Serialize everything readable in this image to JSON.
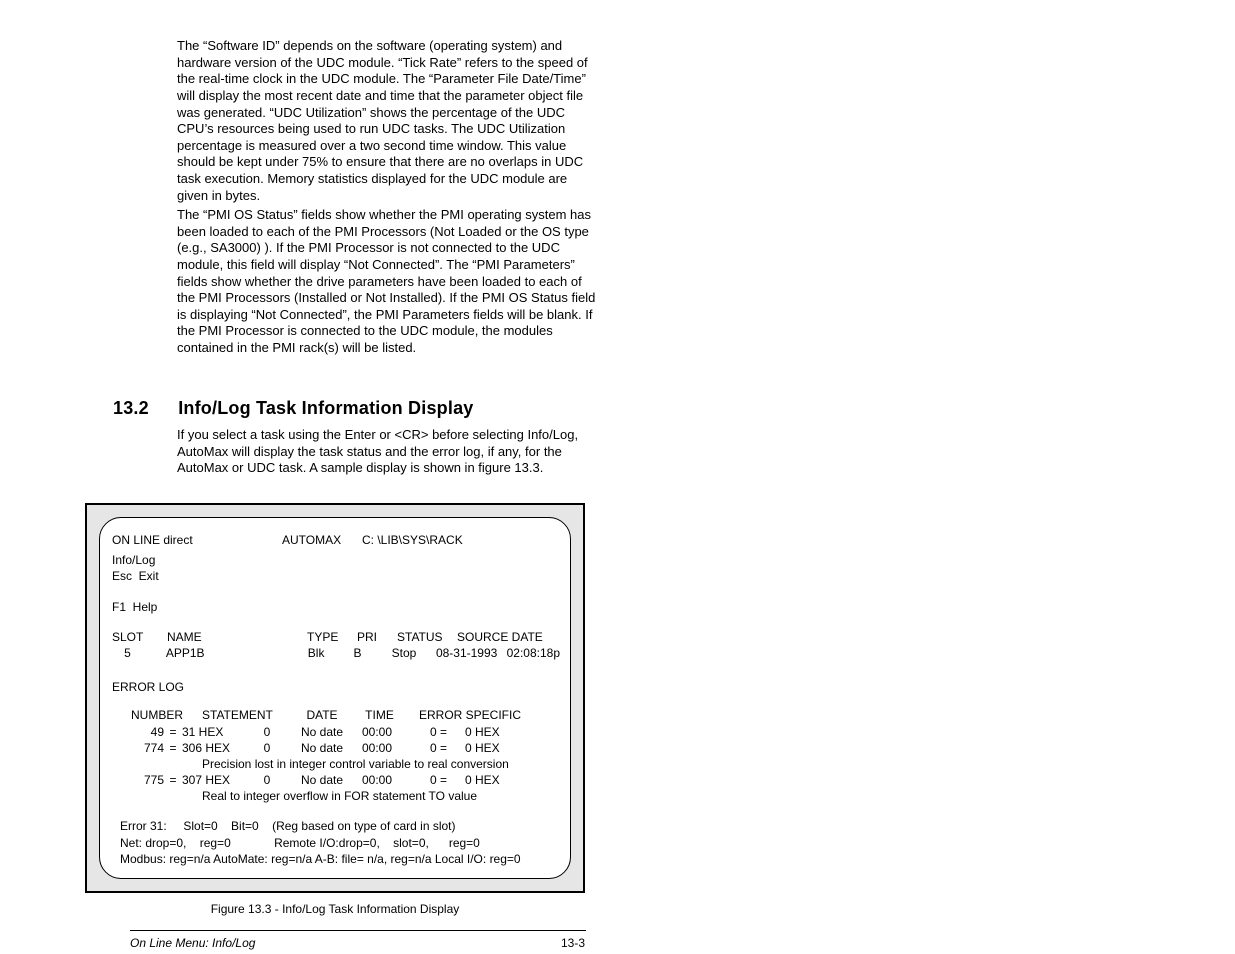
{
  "paragraphs": {
    "p1": "The “Software ID” depends on the software (operating system) and hardware version of the UDC module. “Tick Rate” refers to the speed of the real-time clock in the UDC module. The “Parameter File Date/Time” will display the most recent date and time that the parameter object file was generated. “UDC Utilization” shows the percentage of the UDC CPU’s resources being used to run UDC tasks. The UDC Utilization percentage is measured over a two second time window. This value should be kept under 75% to ensure that there are no overlaps in UDC task execution. Memory statistics displayed for the UDC module are given in bytes.",
    "p2": "The “PMI OS Status” fields show whether the PMI operating system has been loaded to each of the PMI Processors (Not Loaded or the OS type (e.g., SA3000) ). If the PMI Processor is not connected to the UDC module, this field will display “Not Connected”. The “PMI Parameters” fields show whether the drive parameters have been loaded to each of the PMI Processors (Installed or Not Installed). If the PMI OS Status field is displaying “Not Connected”, the PMI Parameters fields will be blank. If the PMI Processor is connected to the UDC module, the modules contained in the PMI rack(s) will be listed."
  },
  "section": {
    "number": "13.2",
    "title": "Info/Log Task Information Display"
  },
  "intro": "If you select a task using the Enter or <CR> before selecting Info/Log, AutoMax will display the task status and the error log, if any, for the AutoMax or UDC task. A sample display is shown in figure 13.3.",
  "terminal": {
    "header": {
      "mode": "ON LINE direct",
      "app": "AUTOMAX",
      "path": "C: \\LIB\\SYS\\RACK"
    },
    "menu": {
      "title": "Info/Log",
      "esc": "Esc  Exit",
      "f1": "F1  Help"
    },
    "taskTable": {
      "headers": {
        "slot": "SLOT",
        "name": "NAME",
        "type": "TYPE",
        "pri": "PRI",
        "status": "STATUS",
        "source": "SOURCE DATE"
      },
      "row": {
        "slot": "5",
        "name": "APP1B",
        "type": "Blk",
        "pri": "B",
        "status": "Stop",
        "date": "08-31-1993",
        "time": "02:08:18p"
      }
    },
    "errorLog": {
      "title": "ERROR LOG",
      "headers": {
        "number": "NUMBER",
        "statement": "STATEMENT",
        "date": "DATE",
        "time": "TIME",
        "errspec": "ERROR SPECIFIC"
      },
      "rows": [
        {
          "num_dec": "49",
          "num_hex": "31 HEX",
          "stmt": "0",
          "date": "No date",
          "time": "00:00",
          "err_lhs": "0 =",
          "err_rhs": "0 HEX",
          "msg": ""
        },
        {
          "num_dec": "774",
          "num_hex": "306 HEX",
          "stmt": "0",
          "date": "No date",
          "time": "00:00",
          "err_lhs": "0 =",
          "err_rhs": "0 HEX",
          "msg": "Precision lost in integer control variable to real conversion"
        },
        {
          "num_dec": "775",
          "num_hex": "307 HEX",
          "stmt": "0",
          "date": "No date",
          "time": "00:00",
          "err_lhs": "0 =",
          "err_rhs": "0 HEX",
          "msg": "Real to integer overflow in FOR statement TO value"
        }
      ]
    },
    "footer": {
      "line1": "Error 31:     Slot=0    Bit=0    (Reg based on type of card in slot)",
      "line2": "Net: drop=0,    reg=0             Remote I/O:drop=0,    slot=0,      reg=0",
      "line3": "Modbus: reg=n/a AutoMate: reg=n/a A-B: file= n/a, reg=n/a Local I/O: reg=0"
    }
  },
  "figureCaption": "Figure 13.3 - Info/Log Task Information Display",
  "pageFooter": {
    "left": "On Line Menu: Info/Log",
    "right": "13-3"
  }
}
